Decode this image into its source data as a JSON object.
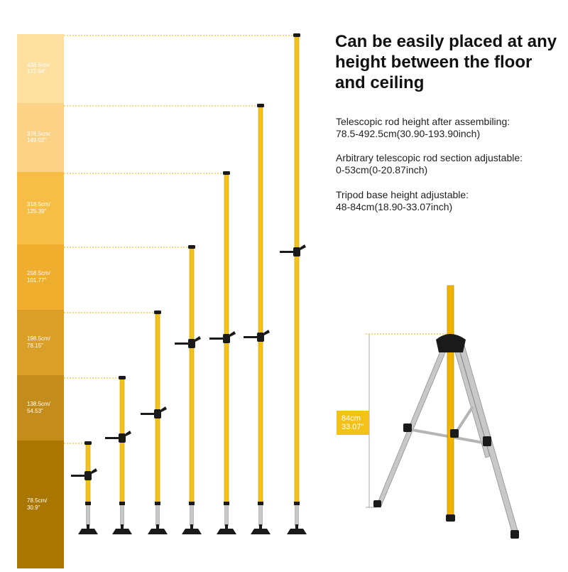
{
  "headline": "Can be easily placed at any height between the floor and ceiling",
  "specs": [
    {
      "title": "Telescopic rod height after assembiling:",
      "value": "78.5-492.5cm(30.90-193.90inch)"
    },
    {
      "title": "Arbitrary telescopic rod section adjustable:",
      "value": "0-53cm(0-20.87inch)"
    },
    {
      "title": "Tripod base height adjustable:",
      "value": "48-84cm(18.90-33.07inch)"
    }
  ],
  "heights": [
    {
      "cm": "438.5cm/",
      "inch": "172.64\""
    },
    {
      "cm": "378.5cm/",
      "inch": "149.02\""
    },
    {
      "cm": "318.5cm/",
      "inch": "125.39\""
    },
    {
      "cm": "258.5cm/",
      "inch": "101.77\""
    },
    {
      "cm": "198.5cm/",
      "inch": "78.15\""
    },
    {
      "cm": "138.5cm/",
      "inch": "54.53\""
    },
    {
      "cm": "78.5cm/",
      "inch": "30.9\""
    }
  ],
  "tripod_height": {
    "cm": "84cm",
    "inch": "33.07\""
  },
  "colors": {
    "rod": "#f2c21a",
    "rod_edge": "#c99a00",
    "silver": "#c8c8c8",
    "black": "#1a1a1a",
    "guide": "#e8b800",
    "bands": [
      "#fde0a0",
      "#fcd286",
      "#f7be45",
      "#efae2e",
      "#d99f26",
      "#c48c1b",
      "#a97600"
    ]
  }
}
